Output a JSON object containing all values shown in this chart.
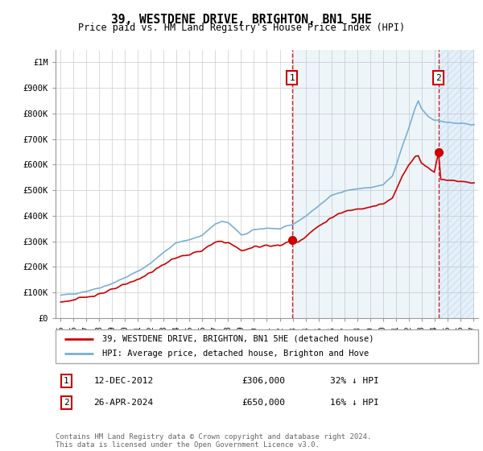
{
  "title": "39, WESTDENE DRIVE, BRIGHTON, BN1 5HE",
  "subtitle": "Price paid vs. HM Land Registry's House Price Index (HPI)",
  "hpi_color": "#7bafd4",
  "price_color": "#cc0000",
  "vline_color": "#cc0000",
  "hatch_color": "#ddeeff",
  "ylim": [
    0,
    1050000
  ],
  "yticks": [
    0,
    100000,
    200000,
    300000,
    400000,
    500000,
    600000,
    700000,
    800000,
    900000,
    1000000
  ],
  "ytick_labels": [
    "£0",
    "£100K",
    "£200K",
    "£300K",
    "£400K",
    "£500K",
    "£600K",
    "£700K",
    "£800K",
    "£900K",
    "£1M"
  ],
  "transaction1_date": 2012.95,
  "transaction1_price": 306000,
  "transaction2_date": 2024.32,
  "transaction2_price": 650000,
  "legend_line1": "39, WESTDENE DRIVE, BRIGHTON, BN1 5HE (detached house)",
  "legend_line2": "HPI: Average price, detached house, Brighton and Hove",
  "footer": "Contains HM Land Registry data © Crown copyright and database right 2024.\nThis data is licensed under the Open Government Licence v3.0."
}
